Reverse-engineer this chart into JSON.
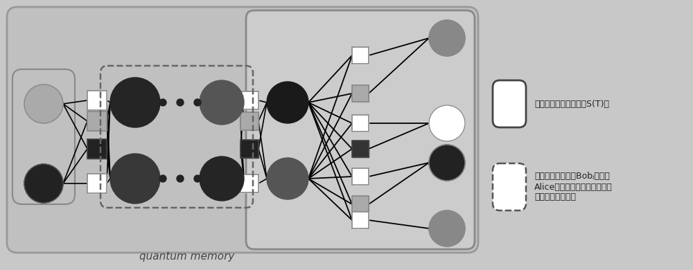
{
  "bg_color": "#c8c8c8",
  "fig_w": 10.0,
  "fig_h": 3.9,
  "dpi": 100,
  "qm_label": "quantum memory",
  "legend1_text": "实线框中量子图为基础S(T)图",
  "legend2_text": "虚线框中量子图为Bobⱼ的发给\nAlice加密后的量子比特和陷阱\n量子比特的混合图",
  "colors": {
    "dark": "#222222",
    "med_dark": "#404040",
    "gray": "#888888",
    "light_gray": "#aaaaaa",
    "white": "#ffffff",
    "bg": "#c8c8c8",
    "box_bg": "#c0c0c0",
    "solid_box_bg": "#cccccc"
  }
}
